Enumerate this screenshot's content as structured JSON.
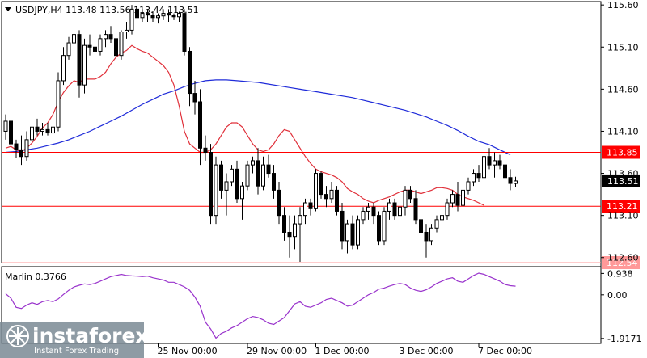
{
  "chart_data": [
    {
      "type": "candlestick",
      "symbol_header": "USDJPY,H4  113.48 113.56 113.44 113.51",
      "y_ticks": [
        "115.60",
        "115.10",
        "114.60",
        "114.10",
        "113.60",
        "113.10",
        "112.60"
      ],
      "ylim": [
        112.54,
        115.64
      ],
      "x_labels": [
        "25 Nov 00:00",
        "29 Nov 00:00",
        "1 Dec 00:00",
        "3 Dec 00:00",
        "7 Dec 00:00"
      ],
      "last_price": "113.51",
      "levels": [
        {
          "label": "113.85",
          "value": 113.85,
          "color": "#ff0000"
        },
        {
          "label": "113.21",
          "value": 113.21,
          "color": "#ff0000"
        },
        {
          "label": "112.54",
          "value": 112.54,
          "color": "#ff9999"
        }
      ],
      "candles": [
        [
          114.1,
          114.3,
          114.0,
          114.22
        ],
        [
          114.22,
          114.35,
          113.85,
          113.95
        ],
        [
          113.95,
          114.0,
          113.78,
          113.88
        ],
        [
          113.88,
          114.05,
          113.7,
          113.8
        ],
        [
          113.8,
          114.1,
          113.75,
          114.0
        ],
        [
          114.0,
          114.18,
          113.95,
          114.15
        ],
        [
          114.15,
          114.25,
          114.05,
          114.1
        ],
        [
          114.1,
          114.2,
          114.05,
          114.12
        ],
        [
          114.12,
          114.2,
          114.05,
          114.08
        ],
        [
          114.08,
          114.18,
          114.02,
          114.15
        ],
        [
          114.15,
          114.8,
          114.1,
          114.7
        ],
        [
          114.7,
          115.1,
          114.65,
          115.0
        ],
        [
          115.0,
          115.22,
          114.95,
          115.15
        ],
        [
          115.15,
          115.3,
          115.05,
          115.25
        ],
        [
          115.25,
          115.3,
          114.5,
          114.65
        ],
        [
          114.65,
          115.2,
          114.55,
          115.12
        ],
        [
          115.12,
          115.25,
          115.0,
          115.1
        ],
        [
          115.1,
          115.15,
          114.95,
          115.05
        ],
        [
          115.05,
          115.25,
          115.0,
          115.2
        ],
        [
          115.2,
          115.3,
          115.1,
          115.25
        ],
        [
          115.25,
          115.35,
          115.15,
          115.2
        ],
        [
          115.2,
          115.25,
          114.9,
          115.0
        ],
        [
          115.0,
          115.3,
          114.95,
          115.28
        ],
        [
          115.28,
          115.4,
          115.2,
          115.3
        ],
        [
          115.3,
          115.6,
          115.25,
          115.55
        ],
        [
          115.55,
          115.6,
          115.4,
          115.45
        ],
        [
          115.45,
          115.55,
          115.4,
          115.5
        ],
        [
          115.5,
          115.55,
          115.4,
          115.48
        ],
        [
          115.48,
          115.53,
          115.4,
          115.45
        ],
        [
          115.45,
          115.5,
          115.38,
          115.47
        ],
        [
          115.47,
          115.55,
          115.42,
          115.5
        ],
        [
          115.5,
          115.55,
          115.4,
          115.48
        ],
        [
          115.48,
          115.5,
          115.42,
          115.46
        ],
        [
          115.46,
          115.52,
          115.4,
          115.5
        ],
        [
          115.5,
          115.55,
          115.0,
          115.05
        ],
        [
          115.05,
          115.1,
          114.4,
          114.55
        ],
        [
          114.55,
          114.7,
          114.3,
          114.45
        ],
        [
          114.45,
          114.6,
          113.7,
          113.9
        ],
        [
          113.9,
          114.05,
          113.75,
          113.85
        ],
        [
          113.85,
          113.95,
          113.0,
          113.1
        ],
        [
          113.1,
          113.8,
          113.0,
          113.7
        ],
        [
          113.7,
          113.75,
          113.3,
          113.4
        ],
        [
          113.4,
          113.6,
          113.1,
          113.5
        ],
        [
          113.5,
          113.7,
          113.45,
          113.65
        ],
        [
          113.65,
          113.75,
          113.25,
          113.3
        ],
        [
          113.3,
          113.5,
          113.05,
          113.45
        ],
        [
          113.45,
          113.75,
          113.4,
          113.7
        ],
        [
          113.7,
          113.8,
          113.6,
          113.75
        ],
        [
          113.75,
          113.9,
          113.35,
          113.45
        ],
        [
          113.45,
          113.8,
          113.4,
          113.7
        ],
        [
          113.7,
          113.82,
          113.55,
          113.6
        ],
        [
          113.6,
          113.7,
          113.3,
          113.4
        ],
        [
          113.4,
          113.5,
          113.0,
          113.1
        ],
        [
          113.1,
          113.2,
          112.8,
          112.9
        ],
        [
          112.9,
          113.1,
          112.6,
          112.85
        ],
        [
          112.85,
          113.1,
          112.7,
          113.0
        ],
        [
          113.0,
          113.2,
          112.55,
          113.1
        ],
        [
          113.1,
          113.3,
          113.0,
          113.25
        ],
        [
          113.25,
          113.3,
          113.1,
          113.18
        ],
        [
          113.18,
          113.65,
          113.15,
          113.6
        ],
        [
          113.6,
          113.62,
          113.3,
          113.35
        ],
        [
          113.35,
          113.45,
          113.2,
          113.3
        ],
        [
          113.3,
          113.5,
          113.25,
          113.4
        ],
        [
          113.4,
          113.45,
          113.1,
          113.15
        ],
        [
          113.15,
          113.25,
          112.7,
          112.8
        ],
        [
          112.8,
          113.05,
          112.65,
          113.0
        ],
        [
          113.0,
          113.1,
          112.7,
          112.75
        ],
        [
          112.75,
          113.1,
          112.7,
          113.05
        ],
        [
          113.05,
          113.2,
          113.0,
          113.15
        ],
        [
          113.15,
          113.25,
          113.05,
          113.2
        ],
        [
          113.2,
          113.25,
          113.0,
          113.1
        ],
        [
          113.1,
          113.15,
          112.75,
          112.8
        ],
        [
          112.8,
          113.2,
          112.75,
          113.15
        ],
        [
          113.15,
          113.3,
          113.05,
          113.25
        ],
        [
          113.25,
          113.3,
          113.05,
          113.1
        ],
        [
          113.1,
          113.25,
          113.05,
          113.2
        ],
        [
          113.2,
          113.45,
          113.1,
          113.4
        ],
        [
          113.4,
          113.45,
          113.25,
          113.3
        ],
        [
          113.3,
          113.4,
          113.0,
          113.05
        ],
        [
          113.05,
          113.25,
          112.8,
          112.9
        ],
        [
          112.9,
          113.0,
          112.6,
          112.8
        ],
        [
          112.8,
          113.0,
          112.75,
          112.95
        ],
        [
          112.95,
          113.1,
          112.9,
          113.05
        ],
        [
          113.05,
          113.2,
          113.0,
          113.1
        ],
        [
          113.1,
          113.3,
          113.05,
          113.25
        ],
        [
          113.25,
          113.4,
          113.2,
          113.35
        ],
        [
          113.35,
          113.5,
          113.15,
          113.22
        ],
        [
          113.22,
          113.45,
          113.2,
          113.4
        ],
        [
          113.4,
          113.55,
          113.35,
          113.5
        ],
        [
          113.5,
          113.65,
          113.45,
          113.6
        ],
        [
          113.6,
          113.7,
          113.5,
          113.55
        ],
        [
          113.55,
          113.85,
          113.5,
          113.8
        ],
        [
          113.8,
          113.9,
          113.65,
          113.7
        ],
        [
          113.7,
          113.85,
          113.55,
          113.75
        ],
        [
          113.75,
          113.82,
          113.65,
          113.7
        ],
        [
          113.7,
          113.8,
          113.4,
          113.55
        ],
        [
          113.55,
          113.65,
          113.4,
          113.48
        ],
        [
          113.48,
          113.56,
          113.44,
          113.51
        ]
      ],
      "ma_red": [
        113.9,
        113.92,
        113.88,
        113.86,
        113.9,
        113.96,
        114.04,
        114.14,
        114.2,
        114.3,
        114.45,
        114.56,
        114.64,
        114.7,
        114.68,
        114.72,
        114.72,
        114.72,
        114.75,
        114.8,
        114.9,
        114.98,
        115.03,
        115.06,
        115.12,
        115.08,
        115.05,
        115.03,
        114.98,
        114.93,
        114.88,
        114.8,
        114.65,
        114.4,
        114.1,
        113.95,
        113.9,
        113.85,
        113.85,
        113.88,
        113.95,
        114.05,
        114.15,
        114.2,
        114.2,
        114.15,
        114.05,
        113.95,
        113.88,
        113.86,
        113.88,
        113.95,
        114.05,
        114.12,
        114.1,
        114.0,
        113.9,
        113.8,
        113.72,
        113.65,
        113.62,
        113.6,
        113.58,
        113.55,
        113.5,
        113.42,
        113.38,
        113.35,
        113.3,
        113.27,
        113.25,
        113.28,
        113.3,
        113.32,
        113.35,
        113.38,
        113.4,
        113.4,
        113.38,
        113.36,
        113.38,
        113.4,
        113.43,
        113.43,
        113.42,
        113.4,
        113.35,
        113.32,
        113.3,
        113.28,
        113.25,
        113.22
      ],
      "ma_red_start": 0,
      "ma_blue": [
        113.85,
        113.86,
        113.88,
        113.9,
        113.93,
        113.96,
        114.0,
        114.05,
        114.1,
        114.16,
        114.22,
        114.28,
        114.35,
        114.42,
        114.48,
        114.54,
        114.58,
        114.63,
        114.67,
        114.7,
        114.71,
        114.71,
        114.7,
        114.69,
        114.68,
        114.66,
        114.64,
        114.62,
        114.6,
        114.58,
        114.56,
        114.54,
        114.52,
        114.5,
        114.47,
        114.44,
        114.41,
        114.38,
        114.35,
        114.31,
        114.27,
        114.22,
        114.17,
        114.11,
        114.04,
        113.98,
        113.94,
        113.88,
        113.82
      ],
      "ma_blue_start": 0,
      "indicator": {
        "label": "Marlin 0.3766",
        "y_ticks": [
          "0.938",
          "0.00",
          "-1.9171"
        ],
        "ylim": [
          -2.1,
          1.2
        ],
        "values": [
          0.05,
          -0.15,
          -0.55,
          -0.6,
          -0.45,
          -0.35,
          -0.42,
          -0.3,
          -0.25,
          -0.3,
          -0.18,
          0.02,
          0.2,
          0.35,
          0.42,
          0.48,
          0.45,
          0.5,
          0.6,
          0.7,
          0.8,
          0.85,
          0.9,
          0.85,
          0.83,
          0.82,
          0.8,
          0.82,
          0.75,
          0.7,
          0.65,
          0.55,
          0.55,
          0.45,
          0.35,
          0.2,
          -0.1,
          -0.5,
          -1.2,
          -1.5,
          -1.9,
          -1.7,
          -1.6,
          -1.45,
          -1.35,
          -1.2,
          -1.05,
          -0.95,
          -1.0,
          -1.1,
          -1.25,
          -1.3,
          -1.15,
          -1.0,
          -0.7,
          -0.4,
          -0.3,
          -0.5,
          -0.55,
          -0.45,
          -0.35,
          -0.2,
          -0.15,
          -0.25,
          -0.35,
          -0.5,
          -0.45,
          -0.3,
          -0.15,
          0.0,
          0.1,
          0.25,
          0.3,
          0.38,
          0.45,
          0.5,
          0.45,
          0.3,
          0.2,
          0.15,
          0.22,
          0.35,
          0.5,
          0.6,
          0.7,
          0.75,
          0.6,
          0.55,
          0.7,
          0.85,
          0.95,
          0.9,
          0.8,
          0.7,
          0.6,
          0.45,
          0.4,
          0.38
        ],
        "line_color": "#9933cc"
      }
    }
  ],
  "watermark": {
    "brand": "instaforex",
    "tagline": "Instant Forex Trading"
  }
}
